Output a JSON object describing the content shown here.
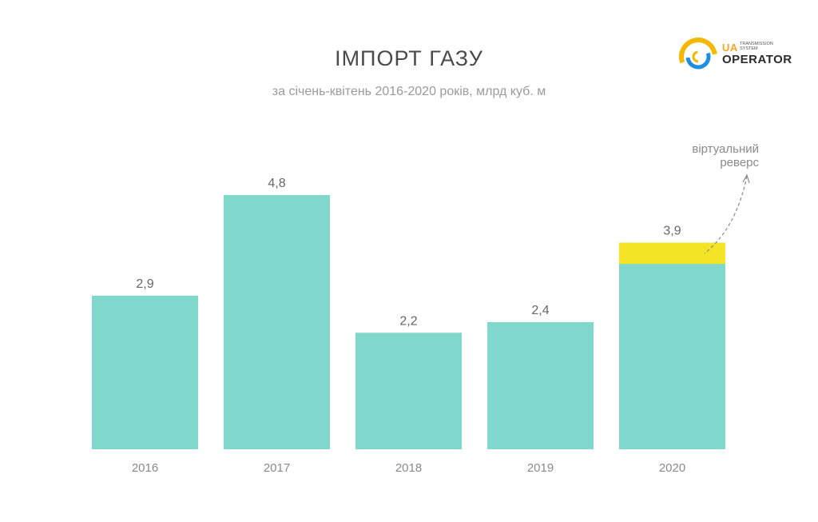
{
  "header": {
    "title": "ІМПОРТ ГАЗУ",
    "subtitle": "за січень-квітень 2016-2020 років, млрд куб. м"
  },
  "logo": {
    "brand": "UA",
    "small_line1": "TRANSMISSION",
    "small_line2": "SYSTEM",
    "brand_line2": "OPERATOR"
  },
  "chart_data": {
    "type": "bar",
    "title": "ІМПОРТ ГАЗУ",
    "subtitle": "за січень-квітень 2016-2020 років, млрд куб. м",
    "categories": [
      "2016",
      "2017",
      "2018",
      "2019",
      "2020"
    ],
    "values": [
      2.9,
      4.8,
      2.2,
      2.4,
      3.9
    ],
    "value_labels": [
      "2,9",
      "4,8",
      "2,2",
      "2,4",
      "3,9"
    ],
    "stacked_segment": {
      "category": "2020",
      "approx_value": 0.4
    },
    "annotation": {
      "text_line1": "віртуальний",
      "text_line2": "реверс"
    },
    "ylim": [
      0,
      4.8
    ],
    "grid": false,
    "colors": {
      "bar": "#7fd8cb",
      "highlight": "#f5e425",
      "label": "#666666",
      "axis_label": "#8a8a8a"
    }
  }
}
